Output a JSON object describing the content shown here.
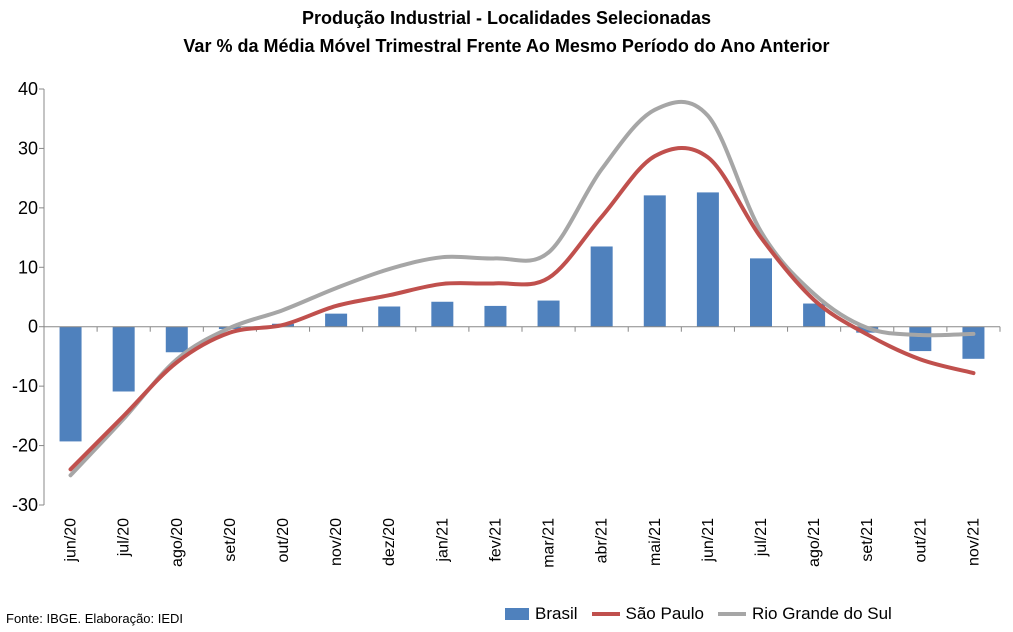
{
  "chart_data": {
    "type": "bar+line",
    "title": "Produção Industrial - Localidades Selecionadas",
    "subtitle": "Var % da Média Móvel Trimestral Frente Ao Mesmo Período do Ano Anterior",
    "categories": [
      "jun/20",
      "jul/20",
      "ago/20",
      "set/20",
      "out/20",
      "nov/20",
      "dez/20",
      "jan/21",
      "fev/21",
      "mar/21",
      "abr/21",
      "mai/21",
      "jun/21",
      "jul/21",
      "ago/21",
      "set/21",
      "out/21",
      "nov/21"
    ],
    "ylim": [
      -30,
      40
    ],
    "yticks": [
      -30,
      -20,
      -10,
      0,
      10,
      20,
      30,
      40
    ],
    "series": [
      {
        "name": "Brasil",
        "kind": "bar",
        "color": "#4F81BD",
        "values": [
          -19.3,
          -10.9,
          -4.3,
          -0.4,
          0.5,
          2.2,
          3.4,
          4.2,
          3.5,
          4.4,
          13.5,
          22.1,
          22.6,
          11.5,
          3.9,
          -1.0,
          -4.1,
          -5.4
        ]
      },
      {
        "name": "São Paulo",
        "kind": "line",
        "color": "#C0504D",
        "values": [
          -24.0,
          -15.0,
          -6.0,
          -1.0,
          0.3,
          3.5,
          5.3,
          7.2,
          7.3,
          8.2,
          18.5,
          28.7,
          28.5,
          15.0,
          4.5,
          -1.3,
          -5.5,
          -7.8
        ]
      },
      {
        "name": "Rio Grande do Sul",
        "kind": "line",
        "color": "#A6A6A6",
        "values": [
          -25.0,
          -15.5,
          -5.5,
          -0.2,
          2.8,
          6.5,
          9.7,
          11.7,
          11.5,
          12.5,
          26.5,
          36.5,
          35.5,
          16.0,
          5.5,
          -0.2,
          -1.4,
          -1.2
        ]
      }
    ],
    "legend_position": "bottom-right",
    "grid": false
  },
  "source": "Fonte: IBGE. Elaboração: IEDI"
}
